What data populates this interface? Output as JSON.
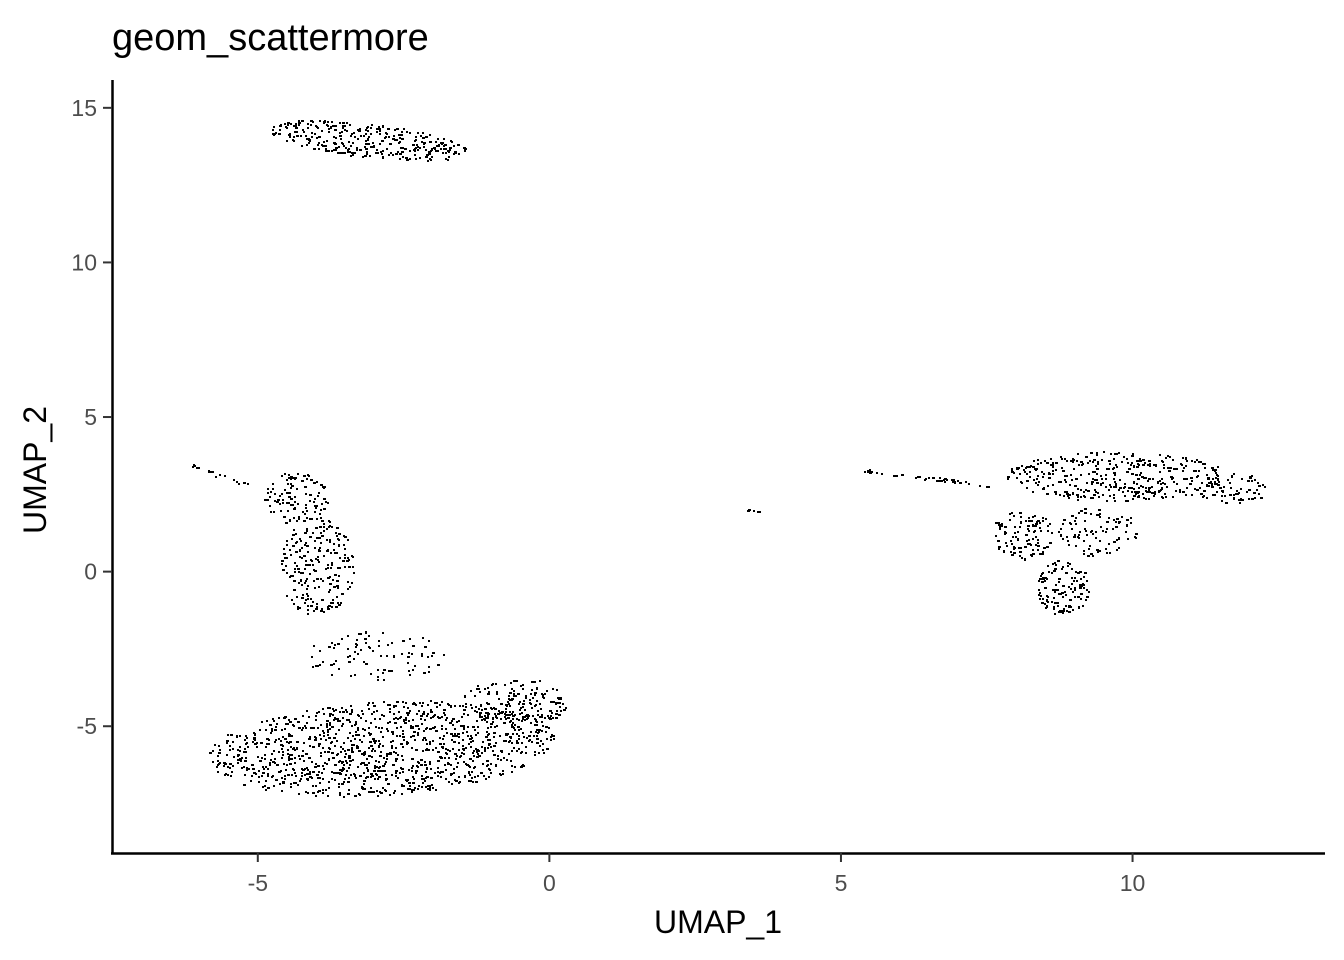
{
  "chart_data": {
    "type": "scatter",
    "title": "geom_scattermore",
    "xlabel": "UMAP_1",
    "ylabel": "UMAP_2",
    "xlim": [
      -7.5,
      13.3
    ],
    "ylim": [
      -9.1,
      15.9
    ],
    "xticks": [
      -5,
      0,
      5,
      10
    ],
    "yticks": [
      -5,
      0,
      5,
      10,
      15
    ],
    "grid": false,
    "legend": false,
    "point_color": "#000000",
    "clusters": [
      {
        "shape": "ellipse",
        "cx": -3.1,
        "cy": 13.95,
        "rx": 1.75,
        "ry": 0.55,
        "angle_deg": -13,
        "n": 320
      },
      {
        "shape": "ellipse",
        "cx": -4.35,
        "cy": 2.4,
        "rx": 0.55,
        "ry": 0.85,
        "angle_deg": 0,
        "n": 110
      },
      {
        "shape": "ellipse",
        "cx": -4.0,
        "cy": 0.2,
        "rx": 0.65,
        "ry": 1.6,
        "angle_deg": 0,
        "n": 220
      },
      {
        "shape": "ellipse",
        "cx": -3.0,
        "cy": -2.7,
        "rx": 1.2,
        "ry": 0.8,
        "angle_deg": 0,
        "n": 90
      },
      {
        "shape": "ellipse",
        "cx": -2.9,
        "cy": -5.7,
        "rx": 3.0,
        "ry": 1.5,
        "angle_deg": 8,
        "n": 1150
      },
      {
        "shape": "ellipse",
        "cx": -0.6,
        "cy": -4.2,
        "rx": 0.9,
        "ry": 0.8,
        "angle_deg": 0,
        "n": 160
      },
      {
        "shape": "ellipse",
        "cx": 9.7,
        "cy": 3.1,
        "rx": 1.9,
        "ry": 0.8,
        "angle_deg": 0,
        "n": 380
      },
      {
        "shape": "ellipse",
        "cx": 11.7,
        "cy": 2.7,
        "rx": 0.6,
        "ry": 0.5,
        "angle_deg": 0,
        "n": 70
      },
      {
        "shape": "ellipse",
        "cx": 8.1,
        "cy": 1.2,
        "rx": 0.55,
        "ry": 0.8,
        "angle_deg": 0,
        "n": 110
      },
      {
        "shape": "ellipse",
        "cx": 8.8,
        "cy": -0.5,
        "rx": 0.45,
        "ry": 0.9,
        "angle_deg": 0,
        "n": 120
      },
      {
        "shape": "ellipse",
        "cx": 9.4,
        "cy": 1.3,
        "rx": 0.7,
        "ry": 0.8,
        "angle_deg": 0,
        "n": 90
      },
      {
        "shape": "line",
        "x0": -6.3,
        "y0": 3.55,
        "x1": -5.0,
        "y1": 2.7,
        "n": 18
      },
      {
        "shape": "line",
        "x0": 5.3,
        "y0": 3.3,
        "x1": 7.6,
        "y1": 2.8,
        "n": 45
      },
      {
        "shape": "ellipse",
        "cx": 3.5,
        "cy": 2.0,
        "rx": 0.12,
        "ry": 0.05,
        "angle_deg": 0,
        "n": 8
      }
    ]
  }
}
